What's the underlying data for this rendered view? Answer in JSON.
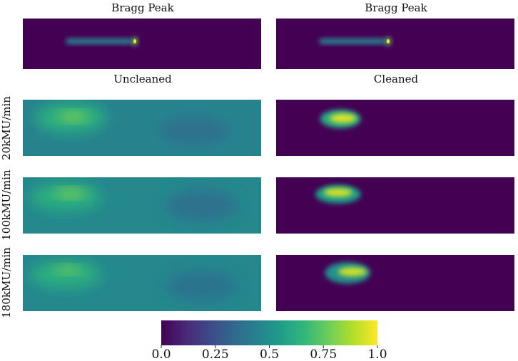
{
  "chart_data": [
    {
      "type": "heatmap",
      "title": "Bragg Peak",
      "panel": "top-left",
      "features": [
        {
          "shape": "beam",
          "intensity": 0.45,
          "x": [
            0.18,
            0.46
          ],
          "y": 0.45,
          "peak_x": 0.47,
          "peak_intensity": 1.0
        }
      ]
    },
    {
      "type": "heatmap",
      "title": "Bragg Peak",
      "panel": "top-right",
      "features": [
        {
          "shape": "beam",
          "intensity": 0.45,
          "x": [
            0.18,
            0.46
          ],
          "y": 0.45,
          "peak_x": 0.47,
          "peak_intensity": 1.0
        }
      ]
    },
    {
      "type": "heatmap",
      "title": "Uncleaned",
      "row_label": "20kMU/min",
      "background": 0.45,
      "features": [
        {
          "shape": "blob",
          "cx": 0.2,
          "cy": 0.32,
          "rx": 0.3,
          "ry": 0.55,
          "intensity": 0.62
        },
        {
          "shape": "blob",
          "cx": 0.21,
          "cy": 0.3,
          "rx": 0.13,
          "ry": 0.15,
          "intensity": 0.82
        },
        {
          "shape": "blob",
          "cx": 0.72,
          "cy": 0.55,
          "rx": 0.3,
          "ry": 0.5,
          "intensity": 0.37
        }
      ]
    },
    {
      "type": "heatmap",
      "title": "Cleaned",
      "row_label": "20kMU/min",
      "background": 0.0,
      "features": [
        {
          "shape": "blob",
          "cx": 0.27,
          "cy": 0.34,
          "rx": 0.17,
          "ry": 0.33,
          "intensity": 0.6
        },
        {
          "shape": "blob",
          "cx": 0.28,
          "cy": 0.33,
          "rx": 0.11,
          "ry": 0.16,
          "intensity": 0.95
        }
      ]
    },
    {
      "type": "heatmap",
      "title": "",
      "row_label": "100kMU/min",
      "background": 0.47,
      "features": [
        {
          "shape": "blob",
          "cx": 0.18,
          "cy": 0.35,
          "rx": 0.3,
          "ry": 0.5,
          "intensity": 0.62
        },
        {
          "shape": "blob",
          "cx": 0.2,
          "cy": 0.28,
          "rx": 0.13,
          "ry": 0.14,
          "intensity": 0.82
        },
        {
          "shape": "blob",
          "cx": 0.75,
          "cy": 0.5,
          "rx": 0.3,
          "ry": 0.55,
          "intensity": 0.37
        }
      ]
    },
    {
      "type": "heatmap",
      "title": "",
      "row_label": "100kMU/min",
      "background": 0.0,
      "features": [
        {
          "shape": "blob",
          "cx": 0.26,
          "cy": 0.3,
          "rx": 0.19,
          "ry": 0.33,
          "intensity": 0.55
        },
        {
          "shape": "blob",
          "cx": 0.26,
          "cy": 0.27,
          "rx": 0.12,
          "ry": 0.15,
          "intensity": 0.93
        }
      ]
    },
    {
      "type": "heatmap",
      "title": "",
      "row_label": "180kMU/min",
      "background": 0.47,
      "features": [
        {
          "shape": "blob",
          "cx": 0.18,
          "cy": 0.35,
          "rx": 0.3,
          "ry": 0.5,
          "intensity": 0.62
        },
        {
          "shape": "blob",
          "cx": 0.19,
          "cy": 0.26,
          "rx": 0.12,
          "ry": 0.12,
          "intensity": 0.8
        },
        {
          "shape": "blob",
          "cx": 0.75,
          "cy": 0.55,
          "rx": 0.3,
          "ry": 0.55,
          "intensity": 0.38
        }
      ]
    },
    {
      "type": "heatmap",
      "title": "",
      "row_label": "180kMU/min",
      "background": 0.0,
      "features": [
        {
          "shape": "blob",
          "cx": 0.3,
          "cy": 0.32,
          "rx": 0.19,
          "ry": 0.38,
          "intensity": 0.5
        },
        {
          "shape": "blob",
          "cx": 0.32,
          "cy": 0.3,
          "rx": 0.12,
          "ry": 0.16,
          "intensity": 0.92
        }
      ]
    }
  ],
  "colorbar": {
    "colormap": "viridis",
    "range": [
      0.0,
      1.0
    ],
    "ticks": [
      "0.0",
      "0.25",
      "0.5",
      "0.75",
      "1.0"
    ],
    "tick_values": [
      0.0,
      0.25,
      0.5,
      0.75,
      1.0
    ]
  },
  "viridis_stops": [
    "#440154",
    "#482878",
    "#3e4989",
    "#31688e",
    "#26828e",
    "#1f9e89",
    "#35b779",
    "#6ece58",
    "#b5de2b",
    "#fde725"
  ]
}
